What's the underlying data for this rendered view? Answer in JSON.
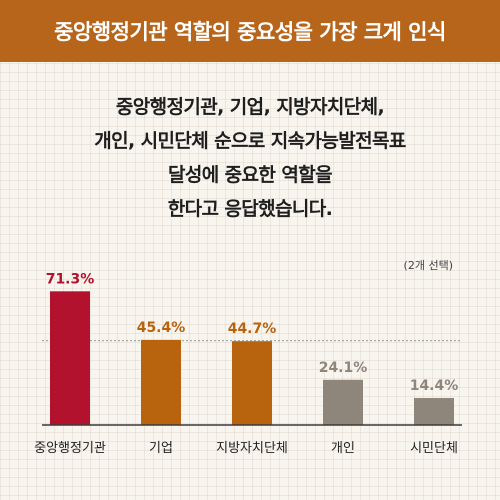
{
  "header": {
    "title": "중앙행정기관 역할의 중요성을 가장 크게 인식"
  },
  "headline": {
    "lines": [
      "중앙행정기관, 기업, 지방자치단체,",
      "개인, 시민단체 순으로 지속가능발전목표",
      "달성에 중요한 역할을",
      "한다고 응답했습니다."
    ]
  },
  "note": "(2개 선택)",
  "colors": {
    "header_bg": "#b7651a",
    "top_bar": "#b3122e",
    "mid_bar": "#b8640f",
    "low_bar": "#8e857b"
  },
  "chart_data": {
    "type": "bar",
    "categories": [
      "중앙행정기관",
      "기업",
      "지방자치단체",
      "개인",
      "시민단체"
    ],
    "values": [
      71.3,
      45.4,
      44.7,
      24.1,
      14.4
    ],
    "value_labels": [
      "71.3%",
      "45.4%",
      "44.7%",
      "24.1%",
      "14.4%"
    ],
    "bar_colors": [
      "#b3122e",
      "#b8640f",
      "#b8640f",
      "#8e857b",
      "#8e857b"
    ],
    "reference_line": 45,
    "ylim": [
      0,
      80
    ],
    "title": "",
    "xlabel": "",
    "ylabel": ""
  }
}
